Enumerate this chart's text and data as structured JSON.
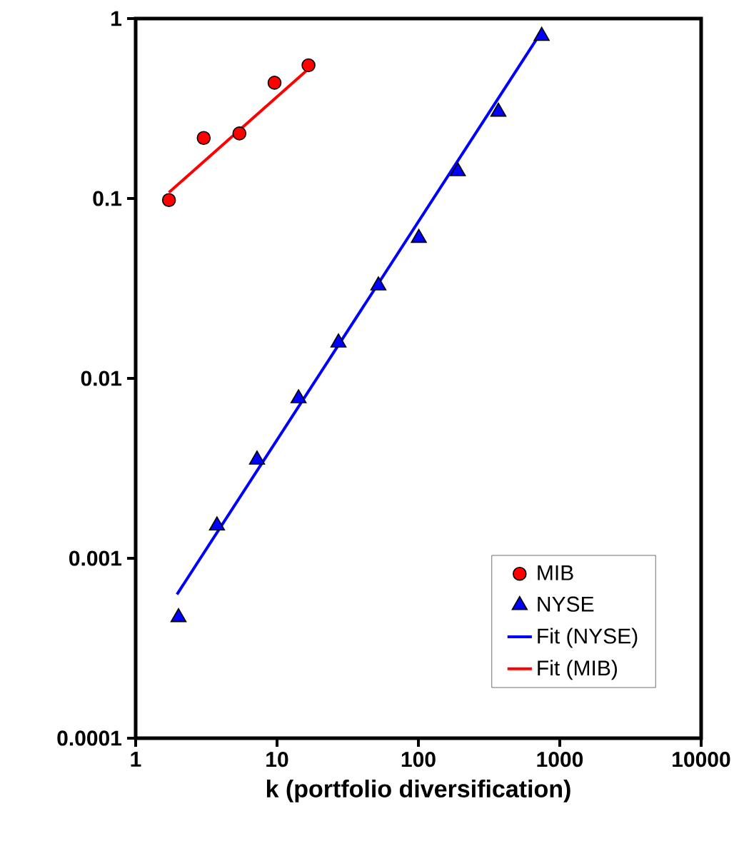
{
  "chart_data": {
    "type": "scatter",
    "xlabel": "k (portfolio diversification)",
    "log": "xy",
    "xlim": [
      1,
      10000
    ],
    "ylim": [
      0.0001,
      1
    ],
    "xticks": [
      1,
      10,
      100,
      1000,
      10000
    ],
    "yticks": [
      0.0001,
      0.001,
      0.01,
      0.1,
      1
    ],
    "legend": "bottom right",
    "grid": false,
    "series": [
      {
        "name": "MIB",
        "type": "scatter",
        "marker": "circle",
        "color": "#ff0000",
        "x": [
          1.72,
          3.03,
          5.42,
          9.6,
          16.7
        ],
        "values": [
          0.098,
          0.217,
          0.23,
          0.44,
          0.55
        ]
      },
      {
        "name": "NYSE",
        "type": "scatter",
        "marker": "triangle",
        "color": "#0000ff",
        "x": [
          2.01,
          3.76,
          7.22,
          14.2,
          27.2,
          52.1,
          100.7,
          190,
          368,
          745
        ],
        "values": [
          0.00047,
          0.00152,
          0.00353,
          0.00774,
          0.0158,
          0.0328,
          0.0603,
          0.1415,
          0.303,
          0.8
        ]
      },
      {
        "name": "Fit (NYSE)",
        "type": "line",
        "marker": "none",
        "line_style": "solid",
        "color": "#0000ff",
        "x": [
          1.96,
          745
        ],
        "values": [
          0.00063,
          0.85
        ]
      },
      {
        "name": "Fit (MIB)",
        "type": "line",
        "marker": "none",
        "line_style": "solid",
        "color": "#ff0000",
        "x": [
          1.72,
          16.7
        ],
        "values": [
          0.108,
          0.525
        ]
      }
    ]
  }
}
